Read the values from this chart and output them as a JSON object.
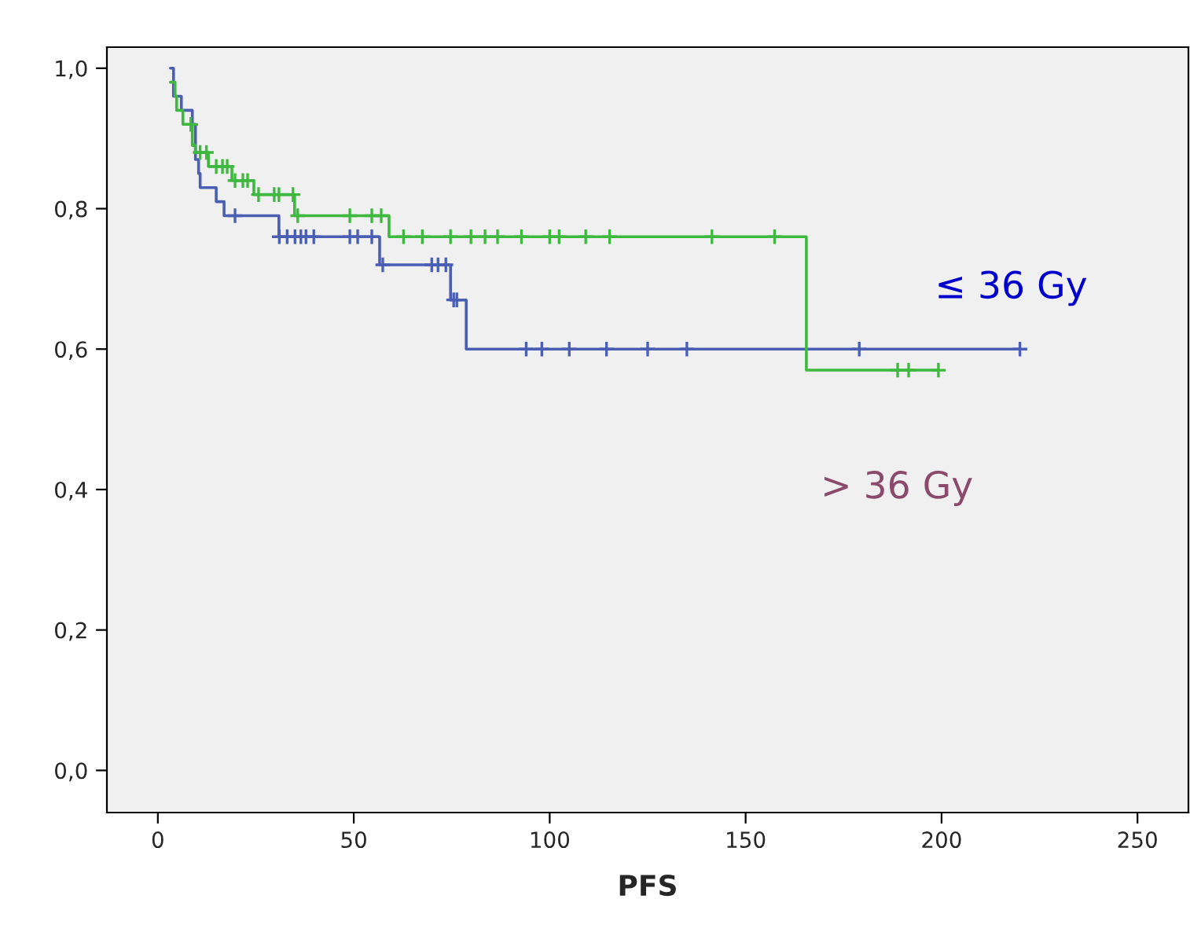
{
  "chart_data": {
    "type": "step",
    "xlabel": "PFS",
    "series": [
      {
        "name": "≤ 36 Gy",
        "color": "#4a5fb4",
        "x": [
          3.2,
          4.0,
          6.0,
          8.8,
          9.6,
          10.4,
          10.8,
          14.9,
          16.9,
          30.9,
          56.6,
          74.7,
          78.7,
          220
        ],
        "values": [
          1.0,
          0.96,
          0.94,
          0.92,
          0.87,
          0.85,
          0.83,
          0.81,
          0.79,
          0.76,
          0.72,
          0.67,
          0.6,
          0.6
        ]
      },
      {
        "name": "> 36 Gy",
        "color": "#3fb83f",
        "x": [
          3.2,
          4.4,
          4.8,
          6.4,
          8.8,
          9.6,
          12.9,
          18.9,
          24.5,
          34.9,
          59.0,
          165.5,
          199.2
        ],
        "values": [
          0.98,
          0.96,
          0.94,
          0.92,
          0.89,
          0.88,
          0.86,
          0.84,
          0.82,
          0.79,
          0.76,
          0.57,
          0.57
        ]
      },
      {
        "type": "scatter",
        "marker": "cross",
        "color": "#4a5fb4",
        "x": [
          19.7,
          31,
          33,
          35,
          36.5,
          37.8,
          39.8,
          49,
          51,
          54.6,
          57.4,
          69.9,
          71.5,
          73.5,
          75.5,
          76.3,
          94,
          98,
          105,
          114.5,
          125,
          135,
          179,
          220
        ],
        "values": [
          0.79,
          0.76,
          0.76,
          0.76,
          0.76,
          0.76,
          0.76,
          0.76,
          0.76,
          0.76,
          0.72,
          0.72,
          0.72,
          0.72,
          0.67,
          0.67,
          0.6,
          0.6,
          0.6,
          0.6,
          0.6,
          0.6,
          0.6,
          0.6
        ]
      },
      {
        "type": "scatter",
        "marker": "cross",
        "color": "#3fb83f",
        "x": [
          8.4,
          10.8,
          12.4,
          14.9,
          16.5,
          17.7,
          19.7,
          21.7,
          22.9,
          25.7,
          29.7,
          30.9,
          34.5,
          35.7,
          49,
          54.6,
          57.0,
          62.7,
          67.5,
          74.7,
          79.9,
          83.5,
          86.7,
          92.8,
          100,
          102.4,
          109.2,
          115.3,
          141.4,
          157.4,
          188.8,
          191.6,
          199.2
        ],
        "values": [
          0.92,
          0.88,
          0.88,
          0.86,
          0.86,
          0.86,
          0.84,
          0.84,
          0.84,
          0.82,
          0.82,
          0.82,
          0.82,
          0.79,
          0.79,
          0.79,
          0.79,
          0.76,
          0.76,
          0.76,
          0.76,
          0.76,
          0.76,
          0.76,
          0.76,
          0.76,
          0.76,
          0.76,
          0.76,
          0.76,
          0.57,
          0.57,
          0.57
        ]
      }
    ],
    "xlim": [
      -13,
      263
    ],
    "ylim": [
      -0.06,
      1.03
    ],
    "xticks": [
      0,
      50,
      100,
      150,
      200,
      250
    ],
    "yticks": [
      {
        "value": 0.0,
        "label": "0,0"
      },
      {
        "value": 0.2,
        "label": "0,2"
      },
      {
        "value": 0.4,
        "label": "0,4"
      },
      {
        "value": 0.6,
        "label": "0,6"
      },
      {
        "value": 0.8,
        "label": "0,8"
      },
      {
        "value": 1.0,
        "label": "1,0"
      }
    ],
    "grid": false,
    "legend": false
  }
}
